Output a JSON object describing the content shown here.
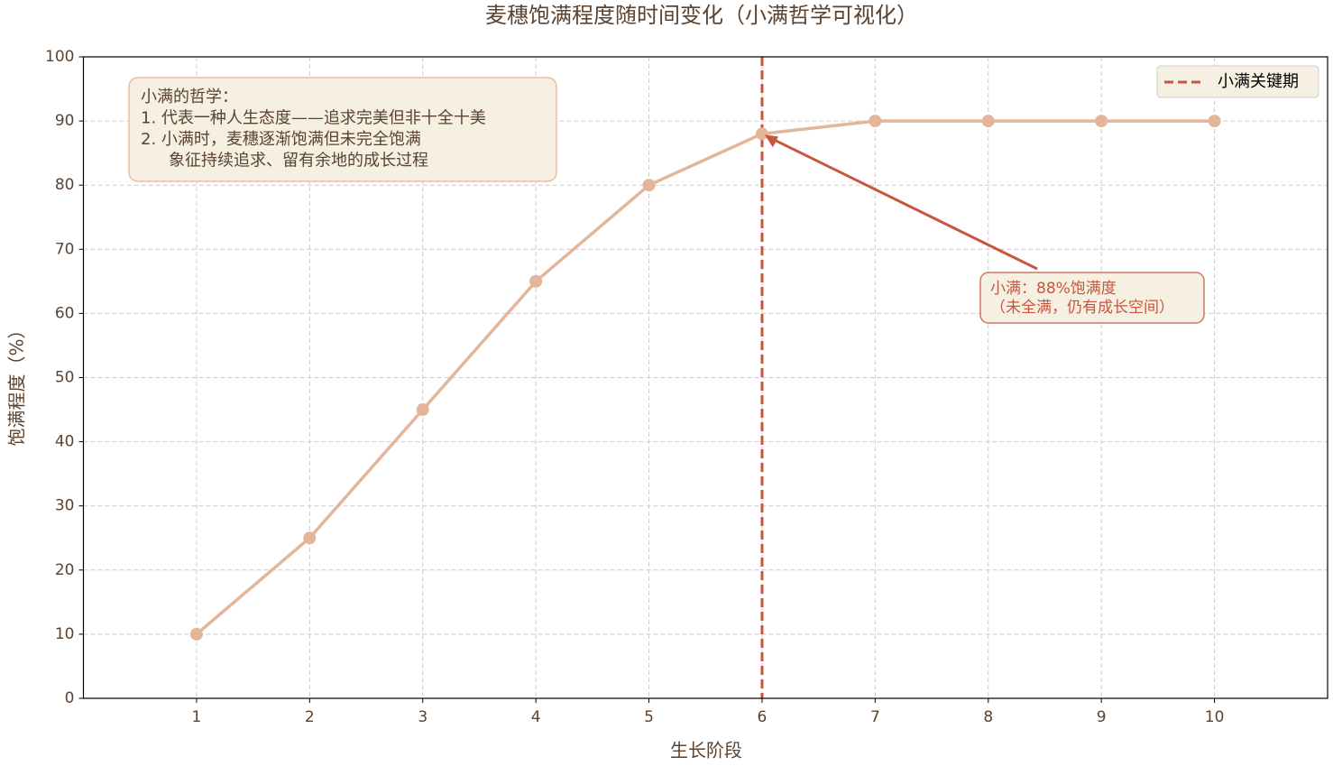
{
  "chart_data": {
    "type": "line",
    "title": "麦穗饱满程度随时间变化（小满哲学可视化）",
    "xlabel": "生长阶段",
    "ylabel": "饱满程度（%）",
    "x": [
      1,
      2,
      3,
      4,
      5,
      6,
      7,
      8,
      9,
      10
    ],
    "series": [
      {
        "name": "饱满程度",
        "color": "#e3b599",
        "values": [
          10,
          25,
          45,
          65,
          80,
          88,
          90,
          90,
          90,
          90
        ]
      }
    ],
    "xlim": [
      0,
      11
    ],
    "xticks": [
      1,
      2,
      3,
      4,
      5,
      6,
      7,
      8,
      9,
      10
    ],
    "ylim": [
      0,
      100
    ],
    "yticks": [
      0,
      10,
      20,
      30,
      40,
      50,
      60,
      70,
      80,
      90,
      100
    ],
    "grid": true,
    "vline": {
      "x": 6,
      "name": "小满关键期",
      "color": "#c8553d"
    },
    "legend": "upper right",
    "text_box": {
      "lines": [
        "小满的哲学：",
        "1. 代表一种人生态度——追求完美但非十全十美",
        "2. 小满时，麦穗逐渐饱满但未完全饱满",
        "象征持续追求、留有余地的成长过程"
      ]
    },
    "annotation": {
      "xy": [
        6,
        88
      ],
      "lines": [
        "小满：88%饱满度",
        "（未全满，仍有成长空间）"
      ],
      "color": "#c8553d"
    }
  }
}
